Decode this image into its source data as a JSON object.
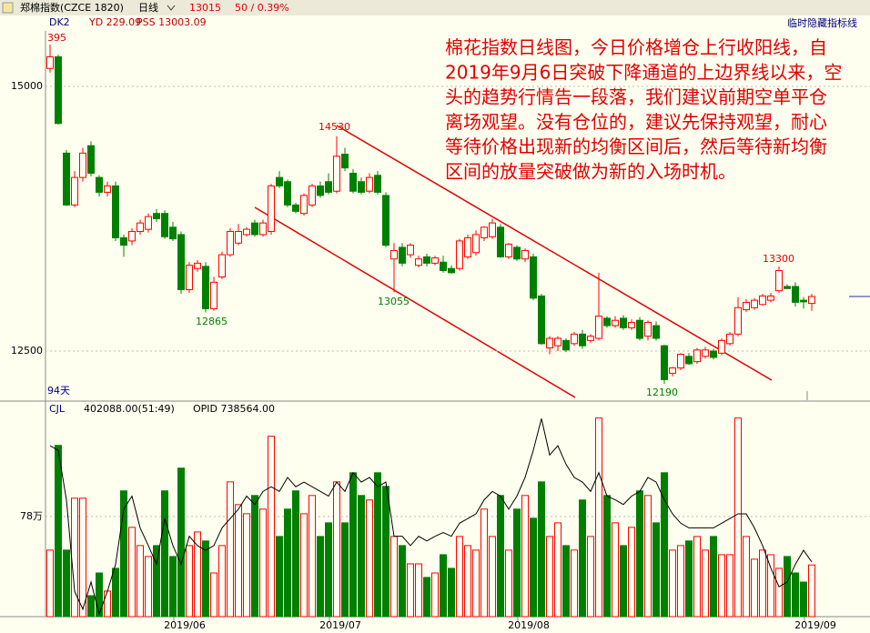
{
  "header": {
    "title": "郑棉指数(CZCE 1820)",
    "period": "日线",
    "last": "13015",
    "change": "50 / 0.39%",
    "button": "临时隐藏指标线"
  },
  "chart_data": [
    {
      "type": "candlestick",
      "indicators": [
        "DK2",
        "YD 229.09",
        "PSS 13003.09"
      ],
      "days_label": "94天",
      "up_color": "#ff0000",
      "down_color": "#008000",
      "grid": true,
      "ylim": [
        12053,
        15679
      ],
      "yticks": [
        15000,
        12500
      ],
      "annotations": [
        "395",
        "14530",
        "12865",
        "13055",
        "12190",
        "13300"
      ],
      "note": [
        "棉花指数日线图，今日价格增仓上行收阳线，自",
        "2019年9月6日突破下降通道的上边界线以来，空",
        "头的趋势行情告一段落，我们建议前期空单平仓",
        "离场观望。没有仓位的，建议先保持观望，耐心",
        "等待价格出现新的均衡区间后，然后等待新均衡",
        "区间的放量突破做为新的入场时机。"
      ],
      "open": [
        15170,
        15280,
        14370,
        13880,
        14140,
        14440,
        14140,
        14000,
        14060,
        13570,
        13540,
        13630,
        13650,
        13800,
        13800,
        13670,
        13600,
        13080,
        13280,
        13300,
        12900,
        13200,
        13410,
        13520,
        13600,
        13710,
        13600,
        13630,
        14140,
        14100,
        13880,
        13800,
        13880,
        14060,
        14100,
        14010,
        14360,
        14180,
        14100,
        14010,
        14160,
        13970,
        13370,
        13480,
        13410,
        13310,
        13390,
        13330,
        13340,
        13280,
        13280,
        13390,
        13430,
        13570,
        13580,
        13670,
        13390,
        13480,
        13370,
        13390,
        13020,
        12530,
        12550,
        12600,
        12570,
        12660,
        12600,
        12620,
        12810,
        12740,
        12810,
        12720,
        12790,
        12640,
        12740,
        12550,
        12290,
        12340,
        12450,
        12400,
        12450,
        12500,
        12480,
        12570,
        12660,
        12890,
        12910,
        12940,
        12980,
        13070,
        13110,
        13110,
        12980,
        12950
      ],
      "high": [
        15395,
        15300,
        14400,
        14200,
        14420,
        14480,
        14160,
        14100,
        14100,
        13600,
        13660,
        13740,
        13800,
        13840,
        13830,
        13720,
        13630,
        13340,
        13360,
        13340,
        13200,
        13440,
        13660,
        13700,
        13670,
        13740,
        13740,
        14080,
        14200,
        14120,
        13900,
        13990,
        14080,
        14100,
        14180,
        14530,
        14420,
        14220,
        14140,
        14180,
        14200,
        14000,
        13520,
        13520,
        13520,
        13400,
        13420,
        13400,
        13400,
        13310,
        13560,
        13600,
        13640,
        13680,
        13750,
        13700,
        13520,
        13500,
        13470,
        13420,
        13040,
        12640,
        12640,
        12620,
        12680,
        12700,
        12660,
        13240,
        12830,
        12830,
        12840,
        12800,
        12820,
        12790,
        12780,
        12560,
        12350,
        12480,
        12480,
        12530,
        12540,
        12520,
        12620,
        12680,
        13008,
        12990,
        13000,
        13040,
        13050,
        13300,
        13130,
        13150,
        13010,
        13040
      ],
      "low": [
        15130,
        14640,
        13870,
        13860,
        14100,
        14150,
        13960,
        13960,
        13540,
        13390,
        13500,
        13600,
        13620,
        13720,
        13560,
        13540,
        13040,
        13050,
        13250,
        12865,
        12880,
        13180,
        13390,
        13500,
        13580,
        13580,
        13580,
        13600,
        14040,
        13860,
        13800,
        13780,
        13860,
        13950,
        13980,
        13990,
        14200,
        13990,
        13980,
        13990,
        13980,
        13480,
        13055,
        13300,
        13380,
        13290,
        13300,
        13310,
        13240,
        13230,
        13260,
        13370,
        13400,
        13540,
        13560,
        13380,
        13370,
        13350,
        13340,
        12980,
        12560,
        12470,
        12500,
        12490,
        12550,
        12520,
        12580,
        12600,
        12720,
        12720,
        12700,
        12700,
        12600,
        12600,
        12600,
        12190,
        12260,
        12320,
        12370,
        12380,
        12430,
        12420,
        12460,
        12550,
        12640,
        12870,
        12890,
        12930,
        12960,
        13050,
        13090,
        12920,
        12900,
        12880
      ],
      "close": [
        15280,
        14650,
        13880,
        14140,
        14370,
        14180,
        14000,
        14060,
        13570,
        13500,
        13630,
        13710,
        13770,
        13750,
        13580,
        13560,
        13080,
        13310,
        13330,
        12900,
        13150,
        13410,
        13630,
        13630,
        13650,
        13600,
        13710,
        14060,
        14060,
        13880,
        13820,
        13970,
        14060,
        13970,
        14000,
        14340,
        14230,
        14010,
        14000,
        14140,
        14000,
        13500,
        13450,
        13330,
        13500,
        13370,
        13330,
        13380,
        13260,
        13240,
        13540,
        13570,
        13600,
        13670,
        13710,
        13390,
        13510,
        13370,
        13450,
        13000,
        12570,
        12620,
        12620,
        12510,
        12660,
        12550,
        12640,
        12830,
        12740,
        12790,
        12720,
        12770,
        12620,
        12770,
        12620,
        12230,
        12340,
        12470,
        12380,
        12510,
        12510,
        12440,
        12600,
        12660,
        12910,
        12960,
        12980,
        13020,
        13020,
        13260,
        13090,
        12960,
        12965,
        13015
      ]
    },
    {
      "type": "bar",
      "categories": [
        null,
        null,
        null,
        null,
        null,
        null,
        null,
        null,
        null,
        null,
        null,
        null,
        null,
        null,
        null,
        null,
        "2019/06",
        null,
        null,
        null,
        null,
        null,
        null,
        null,
        null,
        null,
        null,
        null,
        null,
        null,
        null,
        null,
        null,
        null,
        null,
        "2019/07",
        null,
        null,
        null,
        null,
        null,
        null,
        null,
        null,
        null,
        null,
        null,
        null,
        null,
        null,
        null,
        null,
        null,
        null,
        null,
        null,
        null,
        null,
        "2019/08",
        null,
        null,
        null,
        null,
        null,
        null,
        null,
        null,
        null,
        null,
        null,
        null,
        null,
        null,
        null,
        null,
        null,
        null,
        null,
        null,
        null,
        null,
        null,
        null,
        null,
        null,
        null,
        null,
        null,
        null,
        null,
        null,
        null,
        null,
        "2019/09"
      ],
      "ylim": [
        0,
        1600000
      ],
      "yticks": [
        {
          "value": 780000,
          "label": "78万"
        }
      ],
      "y2lim": [
        680000,
        900000
      ],
      "grid": true,
      "series": [
        {
          "name": "CJL",
          "readout": "402088.00(51:49)",
          "values": [
            518000,
            1333000,
            518000,
            922000,
            922000,
            163000,
            340000,
            199000,
            376000,
            979000,
            695000,
            553000,
            468000,
            553000,
            979000,
            468000,
            1156000,
            553000,
            659000,
            589000,
            340000,
            553000,
            1049000,
            872000,
            801000,
            943000,
            837000,
            1404000,
            624000,
            837000,
            979000,
            801000,
            943000,
            624000,
            730000,
            1049000,
            730000,
            1120000,
            943000,
            908000,
            1120000,
            1014000,
            624000,
            553000,
            411000,
            411000,
            305000,
            340000,
            482000,
            376000,
            624000,
            553000,
            518000,
            837000,
            624000,
            943000,
            518000,
            837000,
            943000,
            766000,
            1049000,
            624000,
            730000,
            553000,
            518000,
            908000,
            624000,
            1546000,
            943000,
            730000,
            553000,
            695000,
            979000,
            943000,
            730000,
            1120000,
            518000,
            553000,
            589000,
            624000,
            518000,
            624000,
            482000,
            482000,
            1546000,
            624000,
            447000,
            518000,
            482000,
            376000,
            468000,
            340000,
            269000,
            402088
          ]
        },
        {
          "name": "OPID 738564.00",
          "axis": "y2",
          "color": "#000000",
          "values": [
            863000,
            858000,
            805000,
            707000,
            688000,
            717000,
            683000,
            707000,
            736000,
            795000,
            809000,
            775000,
            756000,
            736000,
            785000,
            756000,
            736000,
            766000,
            756000,
            751000,
            756000,
            775000,
            785000,
            795000,
            809000,
            800000,
            814000,
            819000,
            814000,
            829000,
            819000,
            824000,
            819000,
            814000,
            809000,
            824000,
            814000,
            834000,
            824000,
            829000,
            819000,
            824000,
            766000,
            766000,
            756000,
            766000,
            761000,
            766000,
            770000,
            766000,
            780000,
            785000,
            790000,
            805000,
            814000,
            809000,
            795000,
            809000,
            829000,
            858000,
            892000,
            853000,
            863000,
            843000,
            829000,
            824000,
            814000,
            834000,
            809000,
            805000,
            800000,
            809000,
            814000,
            829000,
            824000,
            805000,
            790000,
            780000,
            775000,
            775000,
            775000,
            775000,
            780000,
            785000,
            790000,
            790000,
            775000,
            756000,
            732000,
            712000,
            717000,
            736000,
            751000,
            738564
          ]
        }
      ]
    }
  ]
}
